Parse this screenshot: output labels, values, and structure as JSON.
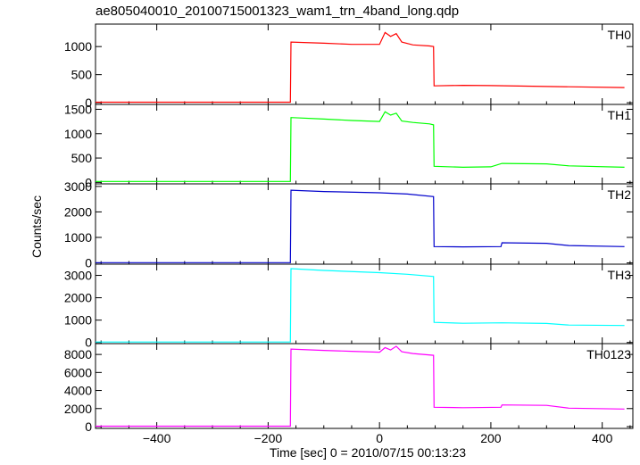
{
  "chart_data": {
    "type": "line",
    "title": "ae805040010_20100715001323_wam1_trn_4band_long.qdp",
    "xlabel": "Time [sec] 0 = 2010/07/15 00:13:23",
    "ylabel": "Counts/sec",
    "xlim": [
      -510,
      455
    ],
    "x_ticks": [
      -400,
      -200,
      0,
      200,
      400
    ],
    "x_tick_labels": [
      "−400",
      "−200",
      "0",
      "200",
      "400"
    ],
    "grid": false,
    "panels": [
      {
        "label": "TH0",
        "color": "#ff0000",
        "ylim": [
          -30,
          1400
        ],
        "y_ticks": [
          0,
          500,
          1000
        ],
        "y_tick_labels": [
          "0",
          "500",
          "1000"
        ],
        "x": [
          -510,
          -160,
          -159,
          -100,
          -50,
          0,
          10,
          20,
          30,
          40,
          60,
          90,
          97,
          98,
          150,
          200,
          300,
          440
        ],
        "y": [
          10,
          10,
          1080,
          1060,
          1040,
          1040,
          1250,
          1180,
          1230,
          1080,
          1030,
          1010,
          1000,
          300,
          310,
          305,
          290,
          270
        ]
      },
      {
        "label": "TH1",
        "color": "#00ff00",
        "ylim": [
          -30,
          1600
        ],
        "y_ticks": [
          0,
          500,
          1000,
          1500
        ],
        "y_tick_labels": [
          "0",
          "500",
          "1000",
          "1500"
        ],
        "x": [
          -510,
          -160,
          -159,
          -100,
          -50,
          0,
          10,
          20,
          30,
          40,
          60,
          90,
          97,
          98,
          150,
          200,
          220,
          300,
          340,
          440
        ],
        "y": [
          20,
          20,
          1330,
          1300,
          1270,
          1250,
          1450,
          1380,
          1420,
          1260,
          1230,
          1200,
          1180,
          330,
          310,
          320,
          390,
          380,
          340,
          310
        ]
      },
      {
        "label": "TH2",
        "color": "#0000cc",
        "ylim": [
          -50,
          3100
        ],
        "y_ticks": [
          0,
          1000,
          2000,
          3000
        ],
        "y_tick_labels": [
          "0",
          "1000",
          "2000",
          "3000"
        ],
        "x": [
          -510,
          -160,
          -159,
          -100,
          0,
          50,
          97,
          98,
          150,
          218,
          220,
          300,
          340,
          440
        ],
        "y": [
          10,
          10,
          2850,
          2800,
          2750,
          2700,
          2600,
          640,
          630,
          640,
          790,
          770,
          680,
          640
        ]
      },
      {
        "label": "TH3",
        "color": "#00ffff",
        "ylim": [
          -50,
          3500
        ],
        "y_ticks": [
          0,
          1000,
          2000,
          3000
        ],
        "y_tick_labels": [
          "0",
          "1000",
          "2000",
          "3000"
        ],
        "x": [
          -510,
          -160,
          -159,
          -100,
          0,
          50,
          97,
          98,
          150,
          220,
          300,
          340,
          440
        ],
        "y": [
          20,
          20,
          3300,
          3220,
          3120,
          3050,
          2950,
          900,
          860,
          880,
          850,
          780,
          760
        ]
      },
      {
        "label": "TH0123",
        "color": "#ff00ff",
        "ylim": [
          -200,
          9200
        ],
        "y_ticks": [
          0,
          2000,
          4000,
          6000,
          8000
        ],
        "y_tick_labels": [
          "0",
          "2000",
          "4000",
          "6000",
          "8000"
        ],
        "x": [
          -510,
          -160,
          -159,
          -100,
          -50,
          0,
          10,
          20,
          30,
          40,
          60,
          97,
          98,
          150,
          218,
          220,
          300,
          340,
          440
        ],
        "y": [
          50,
          50,
          8600,
          8450,
          8350,
          8250,
          8750,
          8500,
          8900,
          8300,
          8100,
          7900,
          2150,
          2100,
          2150,
          2400,
          2350,
          2050,
          1950
        ]
      }
    ]
  }
}
